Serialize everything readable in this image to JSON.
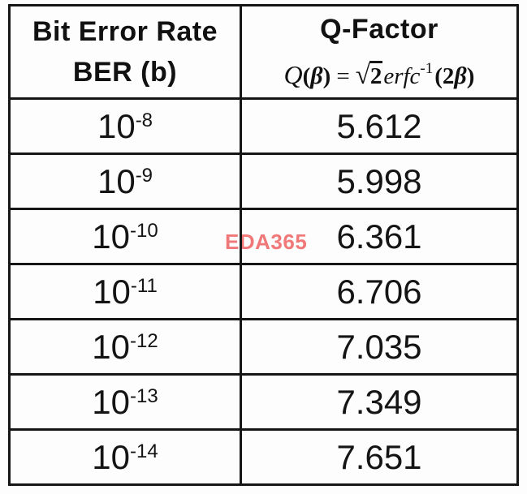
{
  "watermark": {
    "text": "EDA365",
    "color": "#f17878"
  },
  "table": {
    "header": {
      "col1_line1": "Bit Error Rate",
      "col1_line2": "BER (b)",
      "col2_line1": "Q-Factor",
      "formula": {
        "fn": "Q",
        "open1": "(",
        "arg1": "β",
        "close1": ")",
        "equals": "=",
        "radical": "√",
        "radicand": "2",
        "erfc": "erfc",
        "exponent": "-1",
        "open2": "(",
        "two": "2",
        "arg2": "β",
        "close2": ")"
      }
    },
    "rows": [
      {
        "base": "10",
        "exp": "-8",
        "q": "5.612"
      },
      {
        "base": "10",
        "exp": "-9",
        "q": "5.998"
      },
      {
        "base": "10",
        "exp": "-10",
        "q": "6.361"
      },
      {
        "base": "10",
        "exp": "-11",
        "q": "6.706"
      },
      {
        "base": "10",
        "exp": "-12",
        "q": "7.035"
      },
      {
        "base": "10",
        "exp": "-13",
        "q": "7.349"
      },
      {
        "base": "10",
        "exp": "-14",
        "q": "7.651"
      }
    ]
  },
  "chart_data": {
    "type": "table",
    "title": "BER to Q-Factor conversion",
    "columns": [
      "Bit Error Rate BER (b)",
      "Q-Factor Q(β) = √2 erfc⁻¹(2β)"
    ],
    "ber_exponents": [
      -8,
      -9,
      -10,
      -11,
      -12,
      -13,
      -14
    ],
    "q_factor_values": [
      5.612,
      5.998,
      6.361,
      6.706,
      7.035,
      7.349,
      7.651
    ]
  }
}
